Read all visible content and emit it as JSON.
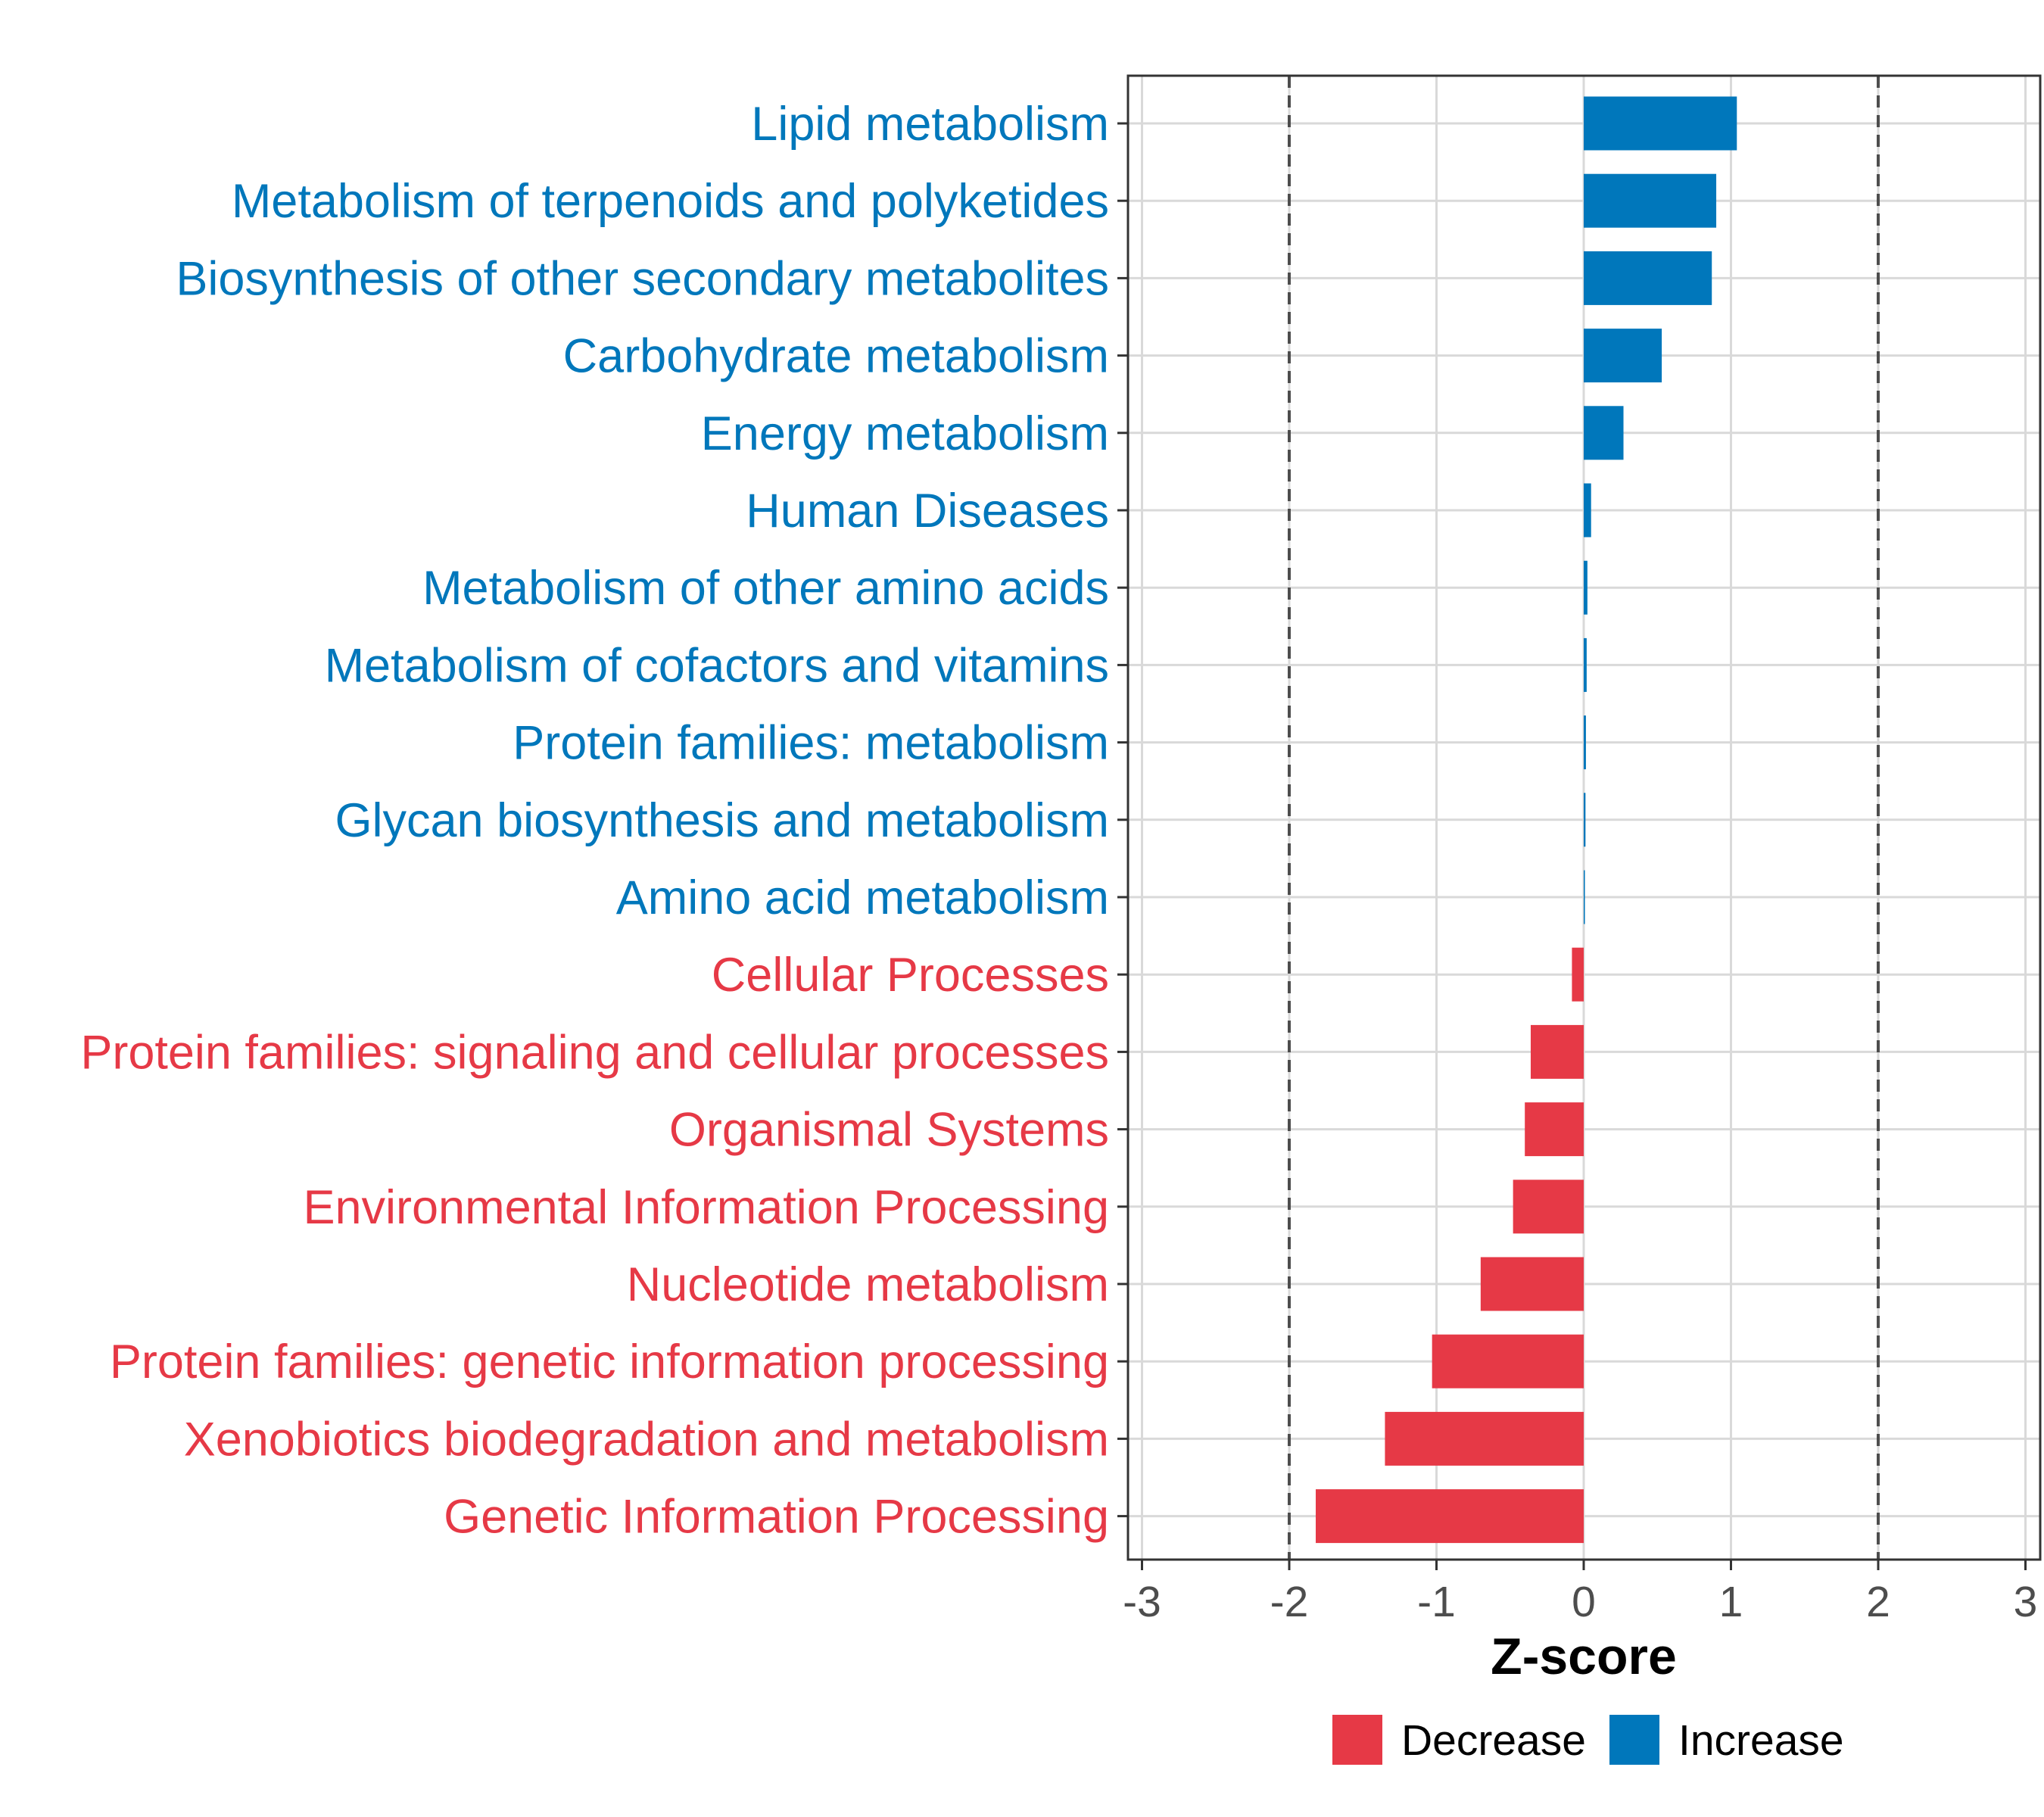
{
  "chart_data": {
    "type": "bar",
    "orientation": "horizontal",
    "xlabel": "Z-score",
    "xlim": [
      -3.05,
      3.05
    ],
    "x_ticks": [
      -3,
      -2,
      -1,
      0,
      1,
      2,
      3
    ],
    "x_tick_labels": [
      "-3",
      "-2",
      "-1",
      "0",
      "1",
      "2",
      "3"
    ],
    "reference_lines": [
      -2,
      2
    ],
    "grid": true,
    "colors": {
      "Decrease": "#e63946",
      "Increase": "#0077bb"
    },
    "legend": {
      "position": "bottom",
      "entries": [
        {
          "label": "Decrease",
          "color": "#e63946"
        },
        {
          "label": "Increase",
          "color": "#0077bb"
        }
      ]
    },
    "categories": [
      "Lipid metabolism",
      "Metabolism of terpenoids and polyketides",
      "Biosynthesis of other secondary metabolites",
      "Carbohydrate metabolism",
      "Energy metabolism",
      "Human Diseases",
      "Metabolism of other amino acids",
      "Metabolism of cofactors and vitamins",
      "Protein families: metabolism",
      "Glycan biosynthesis and metabolism",
      "Amino acid metabolism",
      "Cellular Processes",
      "Protein families: signaling and cellular processes",
      "Organismal Systems",
      "Environmental Information Processing",
      "Nucleotide metabolism",
      "Protein families: genetic information processing",
      "Xenobiotics biodegradation and metabolism",
      "Genetic Information Processing"
    ],
    "values": [
      1.04,
      0.9,
      0.87,
      0.53,
      0.27,
      0.05,
      0.025,
      0.02,
      0.015,
      0.012,
      0.008,
      -0.08,
      -0.36,
      -0.4,
      -0.48,
      -0.7,
      -1.03,
      -1.35,
      -1.82
    ],
    "groups": [
      "Increase",
      "Increase",
      "Increase",
      "Increase",
      "Increase",
      "Increase",
      "Increase",
      "Increase",
      "Increase",
      "Increase",
      "Increase",
      "Decrease",
      "Decrease",
      "Decrease",
      "Decrease",
      "Decrease",
      "Decrease",
      "Decrease",
      "Decrease"
    ]
  }
}
